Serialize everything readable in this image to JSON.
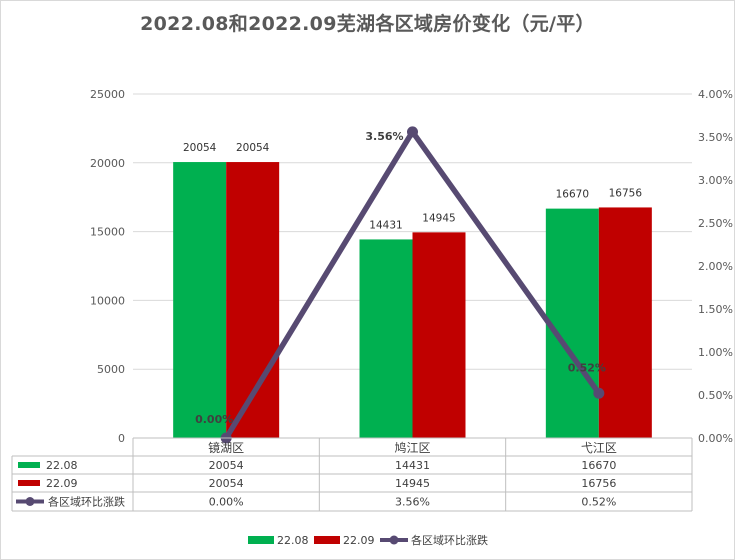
{
  "chart_data": {
    "type": "bar",
    "title": "2022.08和2022.09芜湖各区域房价变化（元/平）",
    "categories": [
      "镜湖区",
      "鸠江区",
      "弋江区"
    ],
    "series": [
      {
        "name": "22.08",
        "kind": "bar",
        "axis": "left",
        "color": "#00b050",
        "values": [
          20054,
          14431,
          16670
        ],
        "labels": [
          "20054",
          "14431",
          "16670"
        ]
      },
      {
        "name": "22.09",
        "kind": "bar",
        "axis": "left",
        "color": "#c00000",
        "values": [
          20054,
          14945,
          16756
        ],
        "labels": [
          "20054",
          "14945",
          "16756"
        ]
      },
      {
        "name": "各区域环比涨跌",
        "kind": "line",
        "axis": "right",
        "color": "#574a72",
        "values": [
          0.0,
          3.56,
          0.52
        ],
        "labels": [
          "0.00%",
          "3.56%",
          "0.52%"
        ]
      }
    ],
    "y_left": {
      "range": [
        0,
        25000
      ],
      "ticks": [
        "0",
        "5000",
        "10000",
        "15000",
        "20000",
        "25000"
      ]
    },
    "y_right": {
      "range": [
        0,
        4.0
      ],
      "ticks": [
        "0.00%",
        "0.50%",
        "1.00%",
        "1.50%",
        "2.00%",
        "2.50%",
        "3.00%",
        "3.50%",
        "4.00%"
      ]
    },
    "grid": true,
    "legend_position": "bottom",
    "data_table": true
  }
}
